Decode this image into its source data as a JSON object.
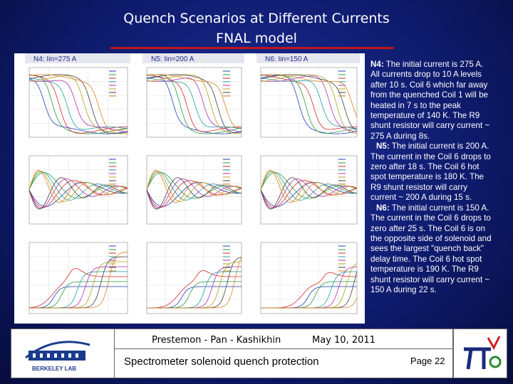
{
  "header": {
    "title_lines": [
      "Quench Scenarios at Different Currents",
      "FNAL model"
    ]
  },
  "panels": [
    "N4: Iin=275 A",
    "N5: Iin=200 A",
    "N6: Iin=150 A"
  ],
  "notes": [
    {
      "label": "N4:",
      "text": "The initial current is 275 A. All currents drop to 10 A levels after 10 s. Coil 6  which far away from the quenched Coil 1 will be heated in 7 s to the peak temperature of 140 K. The R9 shunt resistor will carry current ~ 275 A during 8s."
    },
    {
      "label": "N5:",
      "text": "The initial current is 200 A. The current in the Coil 6 drops to zero after   18 s. The Coil 6 hot spot temperature is 180 K. The R9 shunt resistor will carry  current ~ 200 A during 15 s."
    },
    {
      "label": "N6:",
      "text": "The initial current is 150 A. The current in the Coil 6 drops to zero after   25 s. The Coil 6 is on the opposite side of solenoid and sees the largest \"quench back\" delay time. The Coil 6 hot spot temperature is 190 K. The R9 shunt resistor will carry current ~ 150 A during 22 s."
    }
  ],
  "footer": {
    "logo_text": "BERKELEY LAB",
    "authors": "Prestemon - Pan - Kashikhin",
    "date": "May 10, 2011",
    "subject": "Spectrometer solenoid quench protection",
    "page": "Page 22"
  }
}
